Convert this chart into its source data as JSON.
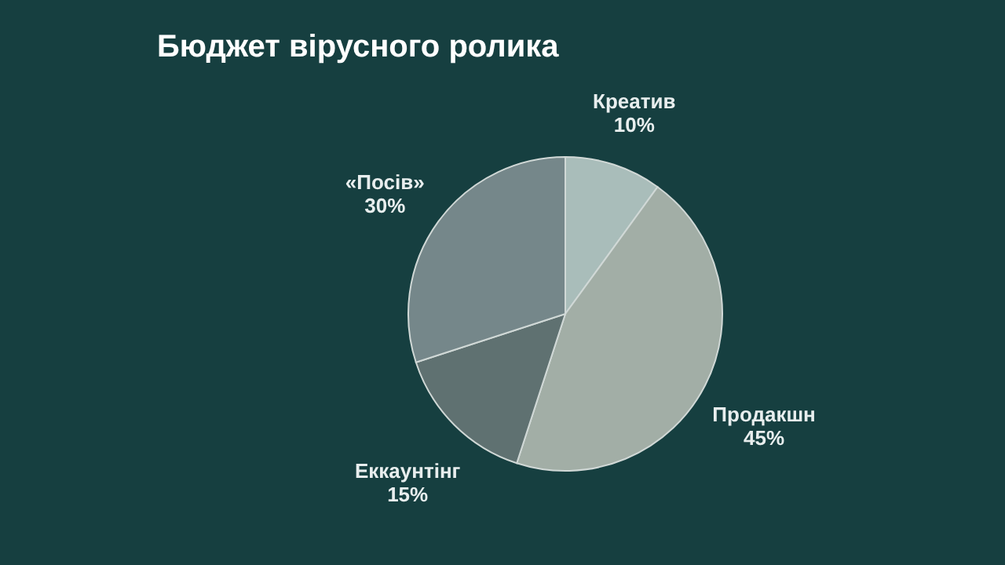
{
  "chart_data": {
    "type": "pie",
    "title": "Бюджет вірусного ролика",
    "categories": [
      "Креатив",
      "Продакшн",
      "Еккаунтінг",
      "«Посів»"
    ],
    "values": [
      10,
      45,
      15,
      30
    ],
    "value_labels": [
      "10%",
      "45%",
      "15%",
      "30%"
    ],
    "colors": [
      "#a9bdba",
      "#a2aea6",
      "#5f7171",
      "#75878a"
    ],
    "legend": false
  }
}
